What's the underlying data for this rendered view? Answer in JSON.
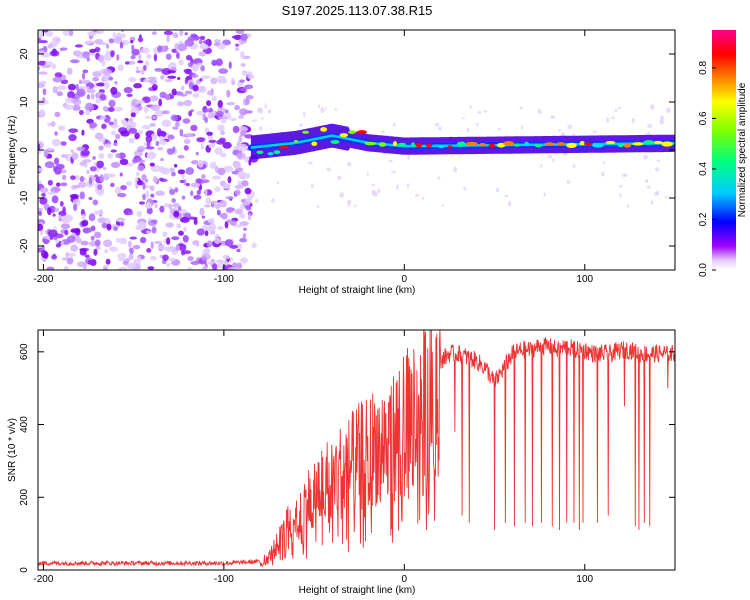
{
  "title": "S197.2025.113.07.38.R15",
  "chart_data": [
    {
      "type": "heatmap",
      "xlabel": "Height of straight line (km)",
      "ylabel": "Frequency (Hz)",
      "xlim": [
        -203,
        150
      ],
      "ylim": [
        -25,
        25
      ],
      "x_ticks": [
        -200,
        -100,
        0,
        100
      ],
      "x_tick_labels": [
        "-200",
        "-100",
        "0",
        "100"
      ],
      "y_ticks": [
        -20,
        -10,
        0,
        10,
        20
      ],
      "y_tick_labels": [
        "-20",
        "-10",
        "0",
        "10",
        "20"
      ],
      "colorbar": {
        "label": "Normalized spectral amplitude",
        "range": [
          0,
          0.95
        ],
        "ticks": [
          0,
          0.2,
          0.4,
          0.6,
          0.8
        ],
        "tick_labels": [
          "0.0",
          "0.2",
          "0.4",
          "0.6",
          "0.8"
        ],
        "colors": [
          "#ffffff",
          "#a000ff",
          "#0000ff",
          "#00ffff",
          "#00ff00",
          "#ffff00",
          "#ff8000",
          "#ff0000",
          "#ff0080"
        ]
      },
      "features": {
        "noise_region_x": [
          -203,
          -85
        ],
        "signal_line": [
          {
            "x": -85,
            "f": 0.5
          },
          {
            "x": -60,
            "f": 1.5
          },
          {
            "x": -40,
            "f": 3.0
          },
          {
            "x": -20,
            "f": 1.5
          },
          {
            "x": 0,
            "f": 0.8
          },
          {
            "x": 50,
            "f": 1.0
          },
          {
            "x": 100,
            "f": 1.2
          },
          {
            "x": 150,
            "f": 1.4
          }
        ]
      }
    },
    {
      "type": "line",
      "xlabel": "Height of straight line (km)",
      "ylabel": "SNR (10 * v/v)",
      "xlim": [
        -203,
        150
      ],
      "ylim": [
        0,
        660
      ],
      "x_ticks": [
        -200,
        -100,
        0,
        100
      ],
      "x_tick_labels": [
        "-200",
        "-100",
        "0",
        "100"
      ],
      "y_ticks": [
        0,
        200,
        400,
        600
      ],
      "y_tick_labels": [
        "0",
        "200",
        "400",
        "600"
      ],
      "color": "#ee3333",
      "series": [
        {
          "x": [
            -203,
            -180,
            -160,
            -140,
            -120,
            -100,
            -90,
            -80,
            -75,
            -70,
            -65,
            -60,
            -55,
            -50,
            -45,
            -40,
            -35,
            -30,
            -25,
            -20,
            -15,
            -10,
            -5,
            0,
            5,
            10,
            15,
            20,
            25,
            30,
            35,
            40,
            45,
            50,
            55,
            60,
            65,
            70,
            75,
            80,
            85,
            90,
            95,
            100,
            105,
            110,
            115,
            120,
            125,
            130,
            135,
            140,
            145,
            150
          ],
          "values": [
            20,
            20,
            20,
            20,
            20,
            20,
            22,
            25,
            40,
            80,
            130,
            170,
            200,
            230,
            260,
            280,
            300,
            320,
            340,
            360,
            380,
            390,
            410,
            440,
            470,
            500,
            540,
            580,
            600,
            600,
            590,
            580,
            560,
            520,
            560,
            600,
            610,
            610,
            620,
            620,
            610,
            620,
            610,
            610,
            600,
            600,
            600,
            610,
            610,
            600,
            600,
            600,
            600,
            600
          ]
        }
      ],
      "dropouts": [
        {
          "x": 28,
          "min": 380
        },
        {
          "x": 32,
          "min": 150
        },
        {
          "x": 36,
          "min": 130
        },
        {
          "x": 50,
          "min": 110
        },
        {
          "x": 56,
          "min": 130
        },
        {
          "x": 61,
          "min": 120
        },
        {
          "x": 67,
          "min": 130
        },
        {
          "x": 71,
          "min": 120
        },
        {
          "x": 76,
          "min": 130
        },
        {
          "x": 82,
          "min": 120
        },
        {
          "x": 86,
          "min": 110
        },
        {
          "x": 90,
          "min": 130
        },
        {
          "x": 94,
          "min": 130
        },
        {
          "x": 97,
          "min": 110
        },
        {
          "x": 99,
          "min": 130
        },
        {
          "x": 107,
          "min": 130
        },
        {
          "x": 113,
          "min": 150
        },
        {
          "x": 122,
          "min": 450
        },
        {
          "x": 128,
          "min": 120
        },
        {
          "x": 130,
          "min": 110
        },
        {
          "x": 133,
          "min": 130
        },
        {
          "x": 136,
          "min": 120
        },
        {
          "x": 146,
          "min": 500
        }
      ]
    }
  ]
}
